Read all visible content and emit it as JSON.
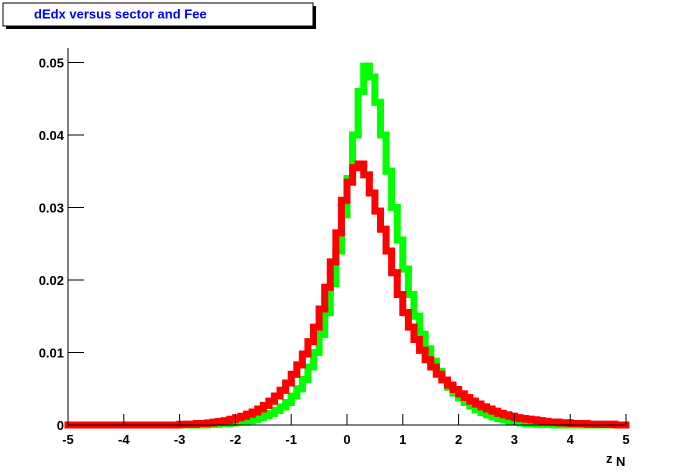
{
  "chart_data": {
    "type": "histogram",
    "title": "dEdx versus sector and Fee",
    "x_label": "z",
    "x_label_subscript": "N",
    "xlim": [
      -5,
      5
    ],
    "xticks": [
      -5,
      -4,
      -3,
      -2,
      -1,
      0,
      1,
      2,
      3,
      4,
      5
    ],
    "ylim": [
      0,
      0.052
    ],
    "yticks": [
      0,
      0.01,
      0.02,
      0.03,
      0.04,
      0.05
    ],
    "bins": [
      -5,
      -4.9,
      -4.8,
      -4.7,
      -4.6,
      -4.5,
      -4.4,
      -4.3,
      -4.2,
      -4.1,
      -4,
      -3.9,
      -3.8,
      -3.7,
      -3.6,
      -3.5,
      -3.4,
      -3.3,
      -3.2,
      -3.1,
      -3,
      -2.9,
      -2.8,
      -2.7,
      -2.6,
      -2.5,
      -2.4,
      -2.3,
      -2.2,
      -2.1,
      -2,
      -1.9,
      -1.8,
      -1.7,
      -1.6,
      -1.5,
      -1.4,
      -1.3,
      -1.2,
      -1.1,
      -1,
      -0.9,
      -0.8,
      -0.7,
      -0.6,
      -0.5,
      -0.4,
      -0.3,
      -0.2,
      -0.1,
      0,
      0.1,
      0.2,
      0.3,
      0.4,
      0.5,
      0.6,
      0.7,
      0.8,
      0.9,
      1,
      1.1,
      1.2,
      1.3,
      1.4,
      1.5,
      1.6,
      1.7,
      1.8,
      1.9,
      2,
      2.1,
      2.2,
      2.3,
      2.4,
      2.5,
      2.6,
      2.7,
      2.8,
      2.9,
      3,
      3.1,
      3.2,
      3.3,
      3.4,
      3.5,
      3.6,
      3.7,
      3.8,
      3.9,
      4,
      4.1,
      4.2,
      4.3,
      4.4,
      4.5,
      4.6,
      4.7,
      4.8,
      4.9,
      5
    ],
    "series": [
      {
        "color": "#00ff00",
        "values": [
          0,
          0,
          0,
          0,
          0,
          0,
          0,
          0,
          0,
          0,
          0,
          0,
          0,
          0,
          0,
          0,
          0,
          0,
          0,
          0,
          0,
          0,
          0,
          0,
          0,
          0.0001,
          0.0001,
          0.0002,
          0.0002,
          0.0003,
          0.0004,
          0.0005,
          0.0006,
          0.0008,
          0.001,
          0.0013,
          0.0016,
          0.002,
          0.0025,
          0.0031,
          0.004,
          0.005,
          0.0063,
          0.008,
          0.01,
          0.0125,
          0.0155,
          0.0195,
          0.024,
          0.029,
          0.034,
          0.04,
          0.046,
          0.0495,
          0.048,
          0.0445,
          0.04,
          0.035,
          0.03,
          0.0255,
          0.0215,
          0.018,
          0.015,
          0.0125,
          0.0105,
          0.0088,
          0.0074,
          0.0062,
          0.0052,
          0.0044,
          0.0037,
          0.0031,
          0.0026,
          0.0021,
          0.0017,
          0.0014,
          0.0011,
          0.0009,
          0.0007,
          0.0005,
          0.0004,
          0.0003,
          0.0002,
          0.0002,
          0.0001,
          0.0001,
          0.0001,
          0,
          0,
          0,
          0,
          0,
          0,
          0,
          0,
          0,
          0,
          0,
          0,
          0
        ]
      },
      {
        "color": "#ff0000",
        "values": [
          0,
          0,
          0,
          0,
          0,
          0,
          0,
          0,
          0,
          0,
          0,
          0,
          0,
          0,
          0,
          0,
          0,
          0,
          0,
          0,
          0.0001,
          0.0001,
          0.0001,
          0.0002,
          0.0002,
          0.0003,
          0.0004,
          0.0005,
          0.0006,
          0.0008,
          0.001,
          0.0012,
          0.0015,
          0.0018,
          0.0022,
          0.0027,
          0.0033,
          0.004,
          0.0048,
          0.0058,
          0.007,
          0.0083,
          0.0098,
          0.0115,
          0.0135,
          0.016,
          0.019,
          0.0225,
          0.0265,
          0.031,
          0.0335,
          0.0355,
          0.036,
          0.0345,
          0.032,
          0.0295,
          0.027,
          0.024,
          0.021,
          0.018,
          0.0155,
          0.0135,
          0.0118,
          0.0103,
          0.009,
          0.008,
          0.007,
          0.0062,
          0.0055,
          0.0049,
          0.0043,
          0.0038,
          0.0033,
          0.0029,
          0.0025,
          0.0022,
          0.0019,
          0.0016,
          0.0014,
          0.0012,
          0.001,
          0.0009,
          0.0008,
          0.0007,
          0.0006,
          0.0005,
          0.0004,
          0.0004,
          0.0003,
          0.0003,
          0.0002,
          0.0002,
          0.0002,
          0.0001,
          0.0001,
          0.0001,
          0.0001,
          0.0001,
          0,
          0
        ]
      }
    ]
  }
}
